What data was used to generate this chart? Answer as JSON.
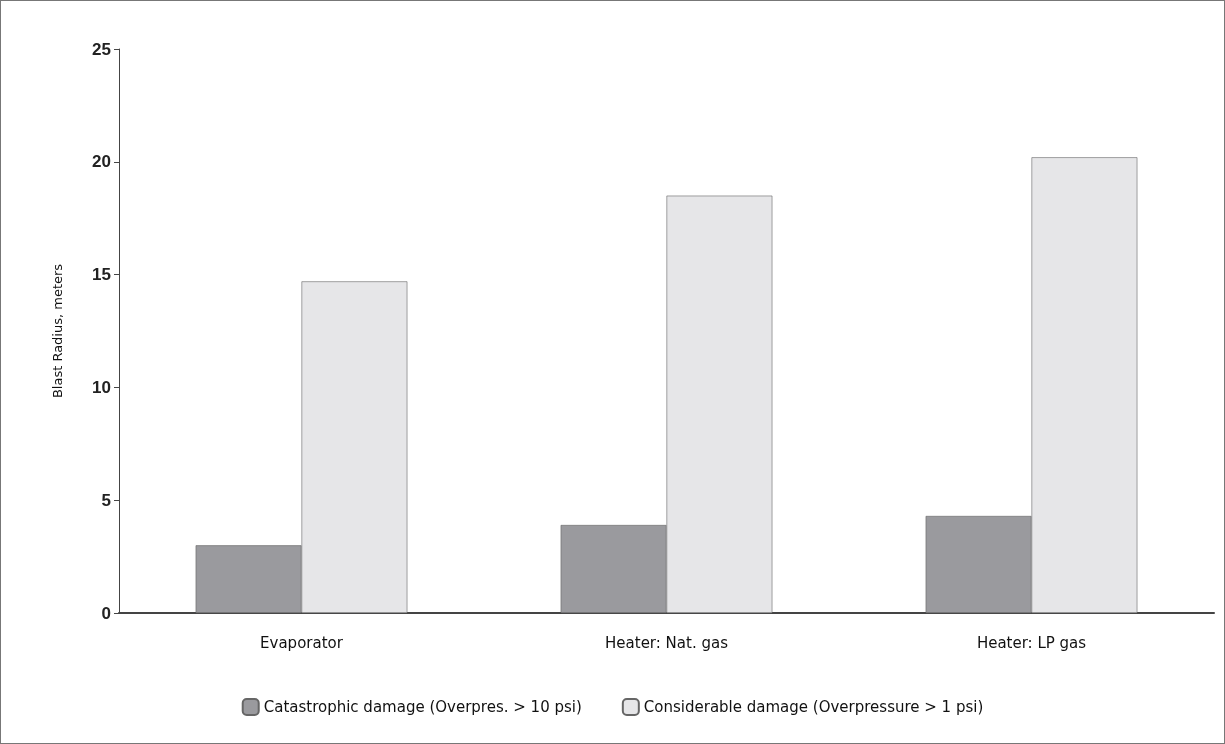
{
  "chart_data": {
    "type": "bar",
    "ylabel": "Blast Radius, meters",
    "categories": [
      "Evaporator",
      "Heater: Nat. gas",
      "Heater: LP gas"
    ],
    "series": [
      {
        "name": "Catastrophic damage (Overpres. > 10 psi)",
        "color": "#9a9a9e",
        "values": [
          3.0,
          3.9,
          4.3
        ]
      },
      {
        "name": "Considerable damage (Overpressure > 1 psi)",
        "color": "#e6e6e8",
        "values": [
          14.7,
          18.5,
          20.2
        ]
      }
    ],
    "ylim": [
      0,
      25
    ],
    "yticks": [
      0,
      5,
      10,
      15,
      20,
      25
    ],
    "grid": false,
    "legend": "bottom"
  }
}
